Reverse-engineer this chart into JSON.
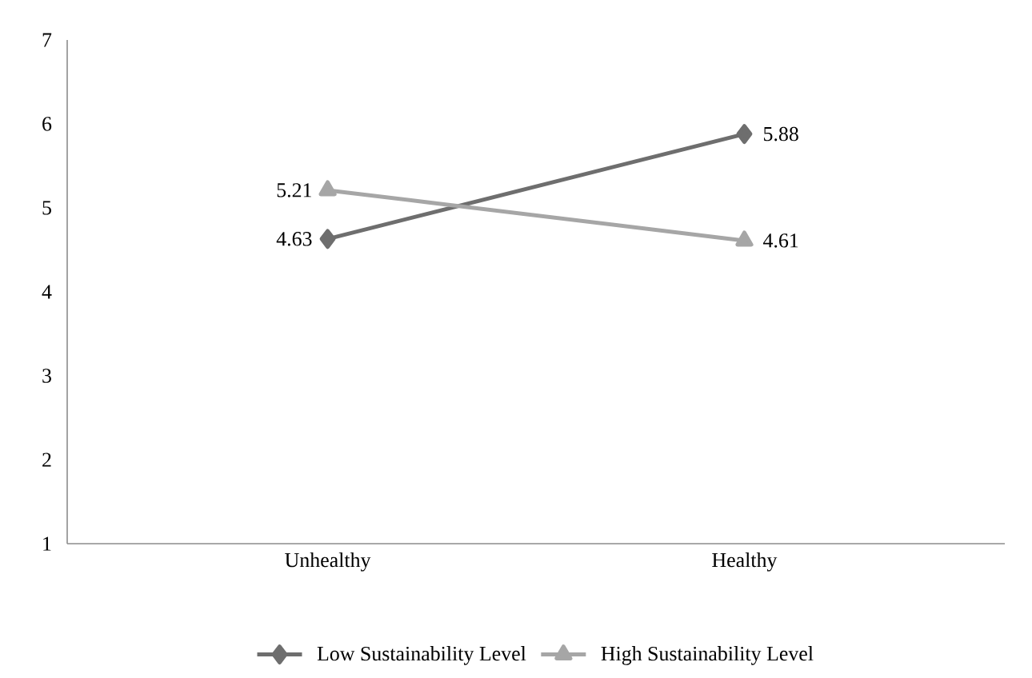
{
  "chart_data": {
    "type": "line",
    "categories": [
      "Unhealthy",
      "Healthy"
    ],
    "series": [
      {
        "name": "Low Sustainability Level",
        "color": "#6e6e6e",
        "marker": "diamond",
        "values": [
          4.63,
          5.88
        ]
      },
      {
        "name": "High Sustainability Level",
        "color": "#a6a6a6",
        "marker": "triangle",
        "values": [
          5.21,
          4.61
        ]
      }
    ],
    "ylim": [
      1,
      7
    ],
    "yticks": [
      1,
      2,
      3,
      4,
      5,
      6,
      7
    ],
    "grid": false,
    "legend": "bottom",
    "data_labels": true
  }
}
